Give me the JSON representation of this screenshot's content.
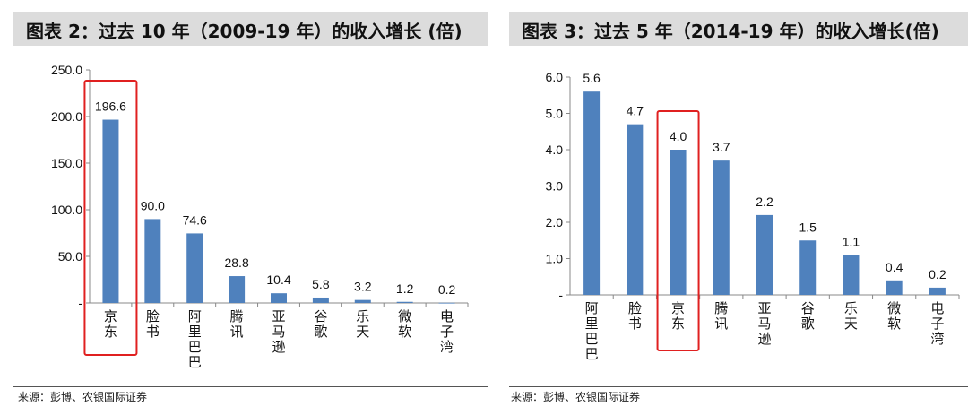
{
  "colors": {
    "bar": "#4f81bd",
    "highlight": "#e02020",
    "title_bg": "#dcdcdc"
  },
  "left": {
    "title": "图表 2：过去 10 年（2009-19 年）的收入增长 (倍)",
    "source": "来源：彭博、农银国际证券",
    "y_ticks": [
      "250.0",
      "200.0",
      "150.0",
      "100.0",
      "50.0",
      "-"
    ],
    "chart_data": {
      "type": "bar",
      "categories": [
        "京东",
        "脸书",
        "阿里巴巴",
        "腾讯",
        "亚马逊",
        "谷歌",
        "乐天",
        "微软",
        "电子湾"
      ],
      "values": [
        196.6,
        90.0,
        74.6,
        28.8,
        10.4,
        5.8,
        3.2,
        1.2,
        0.2
      ],
      "labels": [
        "196.6",
        "90.0",
        "74.6",
        "28.8",
        "10.4",
        "5.8",
        "3.2",
        "1.2",
        "0.2"
      ],
      "ylim": [
        0,
        250
      ],
      "highlight": "京东",
      "grid": false
    }
  },
  "right": {
    "title": "图表 3：过去 5 年（2014-19 年）的收入增长(倍)",
    "source": "来源：彭博、农银国际证券",
    "y_ticks": [
      "6.0",
      "5.0",
      "4.0",
      "3.0",
      "2.0",
      "1.0",
      "-"
    ],
    "chart_data": {
      "type": "bar",
      "categories": [
        "阿里巴巴",
        "脸书",
        "京东",
        "腾讯",
        "亚马逊",
        "谷歌",
        "乐天",
        "微软",
        "电子湾"
      ],
      "values": [
        5.6,
        4.7,
        4.0,
        3.7,
        2.2,
        1.5,
        1.1,
        0.4,
        0.2
      ],
      "labels": [
        "5.6",
        "4.7",
        "4.0",
        "3.7",
        "2.2",
        "1.5",
        "1.1",
        "0.4",
        "0.2"
      ],
      "ylim": [
        0,
        6
      ],
      "highlight": "京东",
      "grid": false
    }
  }
}
